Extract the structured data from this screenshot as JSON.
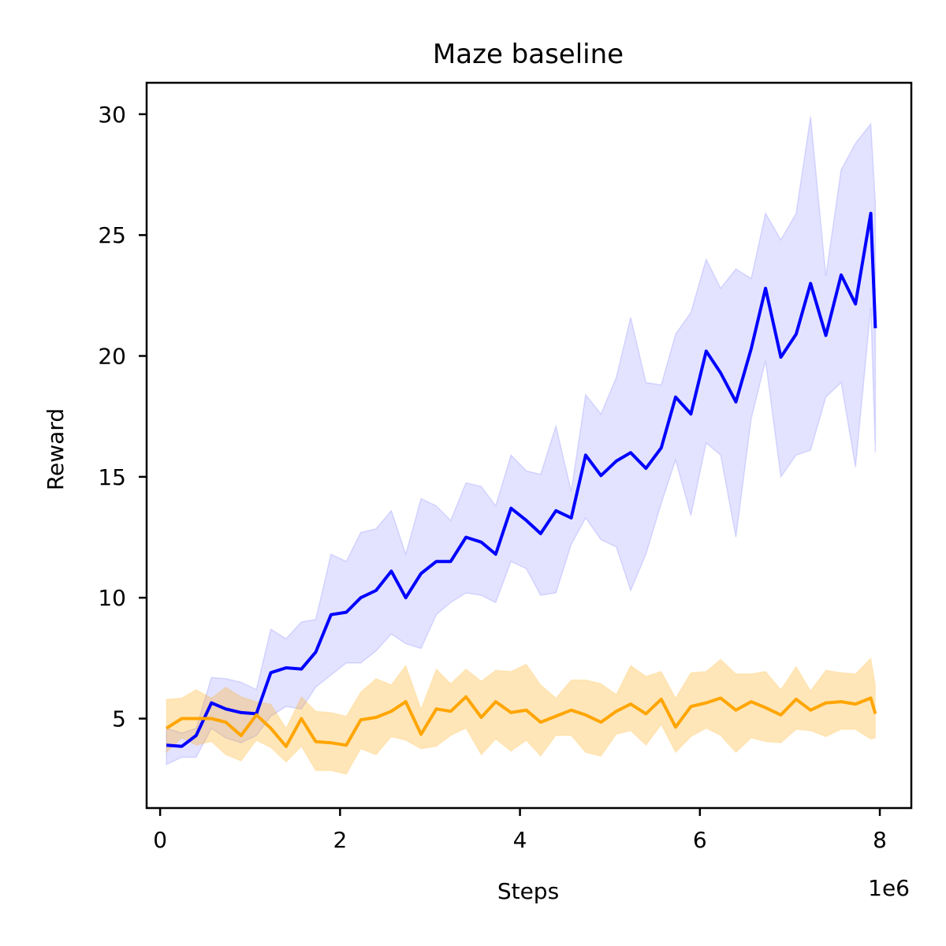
{
  "chart_data": {
    "type": "line",
    "title": "Maze baseline",
    "xlabel": "Steps",
    "ylabel": "Reward",
    "x_offset_label": "1e6",
    "xlim": [
      -0.15,
      8.35
    ],
    "ylim": [
      1.3,
      31.3
    ],
    "xticks": [
      0,
      2,
      4,
      6,
      8
    ],
    "xtick_labels": [
      "0",
      "2",
      "4",
      "6",
      "8"
    ],
    "yticks": [
      5,
      10,
      15,
      20,
      25,
      30
    ],
    "ytick_labels": [
      "5",
      "10",
      "15",
      "20",
      "25",
      "30"
    ],
    "grid": false,
    "x": [
      0.07,
      0.24,
      0.4,
      0.57,
      0.73,
      0.9,
      1.07,
      1.23,
      1.4,
      1.57,
      1.73,
      1.9,
      2.07,
      2.23,
      2.4,
      2.57,
      2.73,
      2.9,
      3.07,
      3.23,
      3.4,
      3.57,
      3.73,
      3.9,
      4.07,
      4.23,
      4.4,
      4.57,
      4.73,
      4.9,
      5.07,
      5.23,
      5.4,
      5.57,
      5.73,
      5.9,
      6.07,
      6.23,
      6.4,
      6.57,
      6.73,
      6.9,
      7.07,
      7.23,
      7.4,
      7.57,
      7.73,
      7.9,
      7.95
    ],
    "series": [
      {
        "color": "#0000ff",
        "band_color": "#0000ff",
        "mean": [
          3.9,
          3.85,
          4.3,
          5.65,
          5.4,
          5.25,
          5.2,
          6.9,
          7.1,
          7.05,
          7.75,
          9.3,
          9.4,
          10.0,
          10.3,
          11.1,
          10.0,
          11.0,
          11.5,
          11.5,
          12.5,
          12.3,
          11.8,
          13.7,
          13.2,
          12.65,
          13.6,
          13.3,
          15.9,
          15.05,
          15.65,
          16.0,
          15.35,
          16.2,
          18.3,
          17.6,
          20.2,
          19.3,
          18.1,
          20.3,
          22.8,
          19.95,
          20.9,
          23.0,
          20.85,
          23.35,
          22.15,
          25.9,
          21.15
        ],
        "upper": [
          4.6,
          4.4,
          4.6,
          6.7,
          6.65,
          6.5,
          6.2,
          8.7,
          8.3,
          9.0,
          9.1,
          11.8,
          11.5,
          12.7,
          12.85,
          13.6,
          11.8,
          14.1,
          13.8,
          13.2,
          14.75,
          14.6,
          13.8,
          15.9,
          15.25,
          15.1,
          17.1,
          14.4,
          18.4,
          17.6,
          19.1,
          21.6,
          18.9,
          18.8,
          20.9,
          21.8,
          24.0,
          22.8,
          23.6,
          23.2,
          25.9,
          24.8,
          25.9,
          29.9,
          23.3,
          27.7,
          28.8,
          29.6,
          26.3
        ],
        "lower": [
          3.1,
          3.4,
          3.4,
          4.6,
          4.2,
          4.0,
          4.3,
          5.1,
          5.5,
          5.4,
          6.3,
          6.8,
          7.3,
          7.3,
          7.8,
          8.5,
          8.1,
          7.9,
          9.3,
          9.8,
          10.2,
          10.1,
          9.8,
          11.5,
          11.2,
          10.1,
          10.2,
          12.2,
          13.3,
          12.4,
          12.1,
          10.3,
          11.8,
          13.9,
          15.7,
          13.4,
          16.4,
          15.9,
          12.5,
          17.4,
          19.8,
          15.0,
          15.9,
          16.1,
          18.3,
          18.9,
          15.4,
          22.0,
          16.0
        ]
      },
      {
        "color": "#ffa500",
        "band_color": "#ffa500",
        "mean": [
          4.6,
          5.0,
          5.0,
          5.0,
          4.85,
          4.3,
          5.15,
          4.6,
          3.85,
          5.0,
          4.05,
          4.0,
          3.9,
          4.95,
          5.05,
          5.3,
          5.7,
          4.35,
          5.4,
          5.3,
          5.9,
          5.05,
          5.7,
          5.25,
          5.35,
          4.85,
          5.1,
          5.35,
          5.15,
          4.85,
          5.3,
          5.6,
          5.2,
          5.8,
          4.65,
          5.5,
          5.65,
          5.85,
          5.35,
          5.7,
          5.45,
          5.15,
          5.8,
          5.35,
          5.65,
          5.7,
          5.6,
          5.85,
          5.2
        ],
        "upper": [
          5.8,
          5.85,
          6.2,
          5.85,
          6.3,
          5.9,
          5.7,
          5.6,
          4.6,
          5.9,
          5.3,
          5.25,
          5.1,
          6.1,
          6.65,
          6.4,
          7.2,
          5.4,
          7.05,
          6.45,
          7.05,
          6.55,
          7.0,
          6.95,
          7.25,
          6.4,
          5.85,
          6.6,
          6.6,
          6.45,
          6.0,
          7.2,
          6.75,
          6.95,
          5.85,
          6.9,
          6.95,
          7.45,
          6.85,
          6.85,
          6.95,
          6.2,
          7.15,
          6.15,
          7.0,
          6.9,
          6.85,
          7.5,
          6.4
        ],
        "lower": [
          3.6,
          4.2,
          3.9,
          4.05,
          3.5,
          3.25,
          4.1,
          3.8,
          3.2,
          3.85,
          2.85,
          2.85,
          2.7,
          3.75,
          3.5,
          4.25,
          4.1,
          3.75,
          3.85,
          4.3,
          4.6,
          3.5,
          4.15,
          3.65,
          4.1,
          3.45,
          4.3,
          4.3,
          3.6,
          3.45,
          4.35,
          4.5,
          3.9,
          4.75,
          3.6,
          4.25,
          4.6,
          4.3,
          3.6,
          4.2,
          4.05,
          4.0,
          4.55,
          4.5,
          4.25,
          4.55,
          4.55,
          4.15,
          4.2
        ]
      }
    ]
  }
}
